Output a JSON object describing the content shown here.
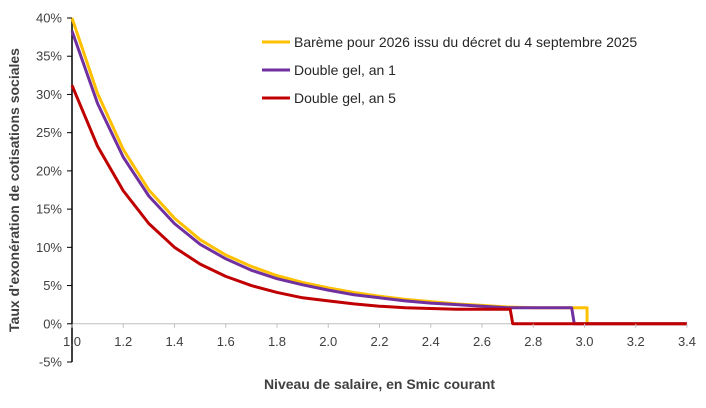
{
  "chart_data": {
    "type": "line",
    "title": "",
    "xlabel": "Niveau de salaire, en Smic courant",
    "ylabel": "Taux d'exonération de cotisations sociales",
    "xlim": [
      1.0,
      3.4
    ],
    "ylim": [
      -0.05,
      0.4
    ],
    "x_ticks": [
      1.0,
      1.2,
      1.4,
      1.6,
      1.8,
      2.0,
      2.2,
      2.4,
      2.6,
      2.8,
      3.0,
      3.2,
      3.4
    ],
    "x_tick_labels": [
      "1.0",
      "1.2",
      "1.4",
      "1.6",
      "1.8",
      "2.0",
      "2.2",
      "2.4",
      "2.6",
      "2.8",
      "3.0",
      "3.2",
      "3.4"
    ],
    "y_ticks": [
      -0.05,
      0,
      0.05,
      0.1,
      0.15,
      0.2,
      0.25,
      0.3,
      0.35,
      0.4
    ],
    "y_tick_labels": [
      "-5%",
      "0%",
      "5%",
      "10%",
      "15%",
      "20%",
      "25%",
      "30%",
      "35%",
      "40%"
    ],
    "grid": false,
    "legend_position": "top-right",
    "series": [
      {
        "name": "Barème pour 2026 issu du décret du 4 septembre 2025",
        "color": "#FFC000",
        "x": [
          1.0,
          1.1,
          1.2,
          1.3,
          1.4,
          1.5,
          1.6,
          1.7,
          1.8,
          1.9,
          2.0,
          2.1,
          2.2,
          2.3,
          2.4,
          2.5,
          2.6,
          2.7,
          2.8,
          2.9,
          3.0,
          3.01,
          3.01,
          3.4
        ],
        "y": [
          0.4,
          0.301,
          0.228,
          0.175,
          0.138,
          0.11,
          0.09,
          0.075,
          0.063,
          0.054,
          0.047,
          0.041,
          0.036,
          0.032,
          0.029,
          0.026,
          0.024,
          0.022,
          0.021,
          0.021,
          0.021,
          0.021,
          0,
          0
        ]
      },
      {
        "name": "Double gel, an 1",
        "color": "#7030A0",
        "x": [
          1.0,
          1.1,
          1.2,
          1.3,
          1.4,
          1.5,
          1.6,
          1.7,
          1.8,
          1.9,
          2.0,
          2.1,
          2.2,
          2.3,
          2.4,
          2.5,
          2.6,
          2.7,
          2.8,
          2.9,
          2.95,
          2.96,
          3.4
        ],
        "y": [
          0.383,
          0.288,
          0.218,
          0.167,
          0.131,
          0.104,
          0.085,
          0.07,
          0.059,
          0.051,
          0.044,
          0.038,
          0.034,
          0.03,
          0.027,
          0.025,
          0.023,
          0.021,
          0.021,
          0.021,
          0.021,
          0,
          0
        ]
      },
      {
        "name": "Double gel, an 5",
        "color": "#C00000",
        "x": [
          1.0,
          1.1,
          1.2,
          1.3,
          1.4,
          1.5,
          1.6,
          1.7,
          1.8,
          1.9,
          2.0,
          2.1,
          2.2,
          2.3,
          2.4,
          2.5,
          2.6,
          2.7,
          2.71,
          2.72,
          3.4
        ],
        "y": [
          0.312,
          0.232,
          0.174,
          0.131,
          0.1,
          0.078,
          0.062,
          0.05,
          0.041,
          0.034,
          0.03,
          0.026,
          0.023,
          0.021,
          0.02,
          0.019,
          0.019,
          0.019,
          0.019,
          0,
          0
        ]
      }
    ]
  }
}
